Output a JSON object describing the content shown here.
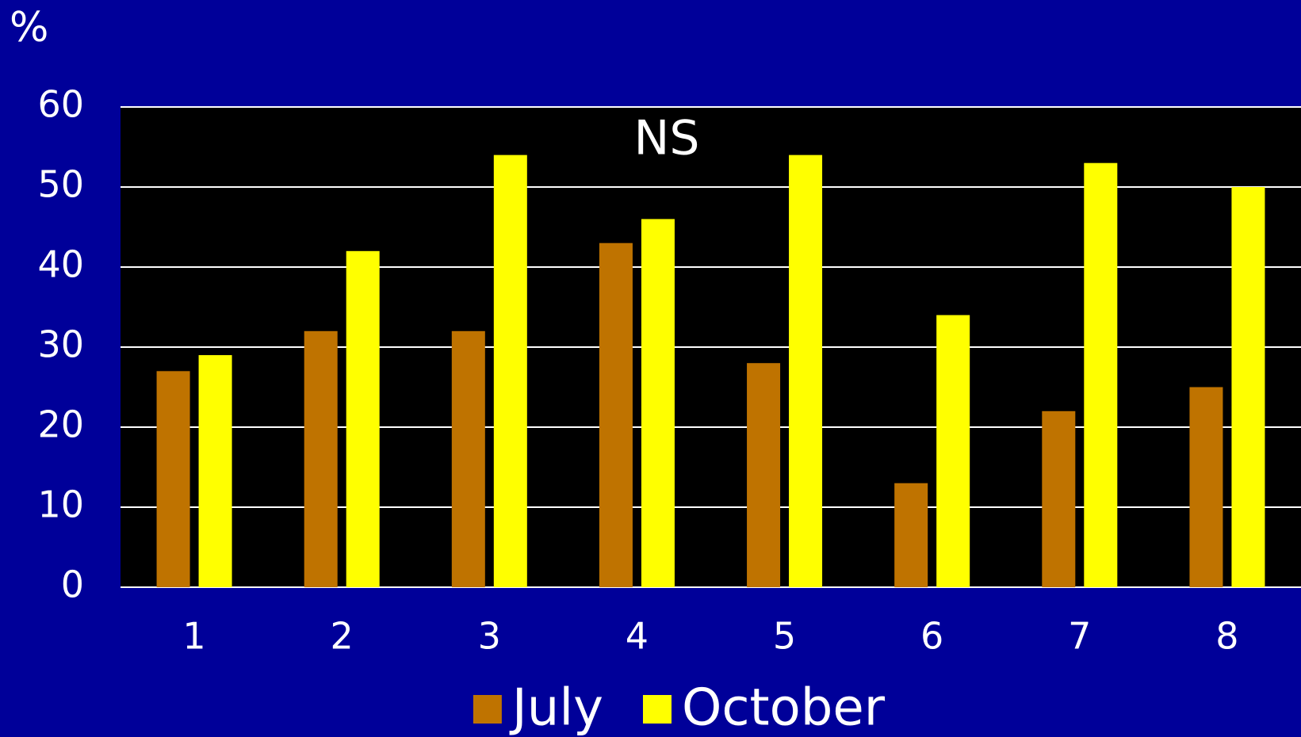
{
  "chart_data": {
    "type": "bar",
    "y_label": "%",
    "annotation": "NS",
    "categories": [
      "1",
      "2",
      "3",
      "4",
      "5",
      "6",
      "7",
      "8"
    ],
    "series": [
      {
        "name": "July",
        "color": "#bf7300",
        "values": [
          27,
          32,
          32,
          43,
          28,
          13,
          22,
          25
        ]
      },
      {
        "name": "October",
        "color": "#ffff00",
        "values": [
          29,
          42,
          54,
          46,
          54,
          34,
          53,
          50
        ]
      }
    ],
    "ylim": [
      0,
      60
    ],
    "yticks": [
      0,
      10,
      20,
      30,
      40,
      50,
      60
    ],
    "grid": true,
    "legend": "bottom"
  }
}
